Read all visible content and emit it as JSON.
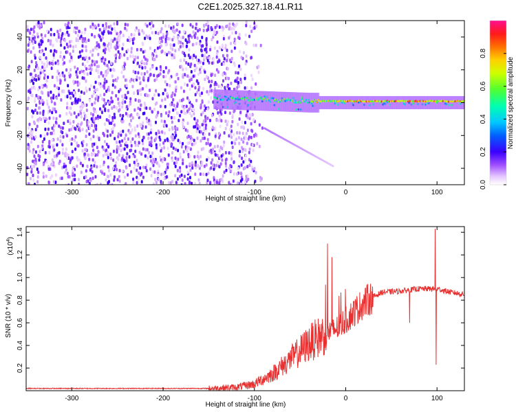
{
  "title": "C2E1.2025.327.18.41.R11",
  "chart_data": [
    {
      "type": "heatmap",
      "xlabel": "Height of straight line (km)",
      "ylabel": "Frequency (Hz)",
      "xlim": [
        -350,
        130
      ],
      "ylim": [
        -50,
        50
      ],
      "xticks": [
        -300,
        -200,
        -100,
        0,
        100
      ],
      "yticks": [
        -40,
        -20,
        0,
        20,
        40
      ],
      "xtick_labels": [
        "-300",
        "-200",
        "-100",
        "0",
        "100"
      ],
      "ytick_labels": [
        "-40",
        "-20",
        "0",
        "20",
        "40"
      ],
      "colorbar": {
        "label": "Normalized spectral amplitude",
        "range": [
          0,
          1
        ],
        "ticks": [
          0.0,
          0.2,
          0.4,
          0.6,
          0.8
        ],
        "tick_labels": [
          "0.0",
          "0.2",
          "0.4",
          "0.6",
          "0.8"
        ]
      },
      "features": [
        {
          "name": "noise",
          "x_range": [
            -350,
            -100
          ],
          "freq_range": [
            -50,
            50
          ],
          "amplitude": 0.15
        },
        {
          "name": "main-line",
          "x_range": [
            -145,
            130
          ],
          "freq_hz": 0,
          "amplitude": 0.9
        },
        {
          "name": "tail",
          "x_range": [
            -90,
            -15
          ],
          "freq_start_hz": -15,
          "freq_end_hz": -38,
          "amplitude": 0.1
        }
      ]
    },
    {
      "type": "line",
      "xlabel": "Height of straight line (km)",
      "ylabel": "SNR (10 * v/v)",
      "y_multiplier": "(x10",
      "y_multiplier_exp": "4",
      "y_multiplier_close": ")",
      "xlim": [
        -350,
        130
      ],
      "ylim": [
        0,
        1.45
      ],
      "xticks": [
        -300,
        -200,
        -100,
        0,
        100
      ],
      "yticks": [
        0.2,
        0.4,
        0.6,
        0.8,
        1.0,
        1.2,
        1.4
      ],
      "xtick_labels": [
        "-300",
        "-200",
        "-100",
        "0",
        "100"
      ],
      "ytick_labels": [
        "0.2",
        "0.4",
        "0.6",
        "0.8",
        "1.0",
        "1.2",
        "1.4"
      ],
      "series": [
        {
          "name": "SNR",
          "color": "#e83030",
          "points": [
            [
              -350,
              0.02
            ],
            [
              -150,
              0.02
            ],
            [
              -120,
              0.03
            ],
            [
              -100,
              0.06
            ],
            [
              -80,
              0.15
            ],
            [
              -60,
              0.28
            ],
            [
              -40,
              0.42
            ],
            [
              -20,
              0.52
            ],
            [
              -10,
              0.55
            ],
            [
              0,
              0.62
            ],
            [
              10,
              0.7
            ],
            [
              20,
              0.78
            ],
            [
              30,
              0.83
            ],
            [
              40,
              0.87
            ],
            [
              60,
              0.88
            ],
            [
              80,
              0.9
            ],
            [
              100,
              0.9
            ],
            [
              115,
              0.87
            ],
            [
              130,
              0.85
            ]
          ],
          "spikes": [
            [
              -20,
              1.3
            ],
            [
              -15,
              1.18
            ],
            [
              70,
              0.6
            ],
            [
              98,
              1.43
            ],
            [
              99,
              0.23
            ]
          ]
        }
      ]
    }
  ]
}
